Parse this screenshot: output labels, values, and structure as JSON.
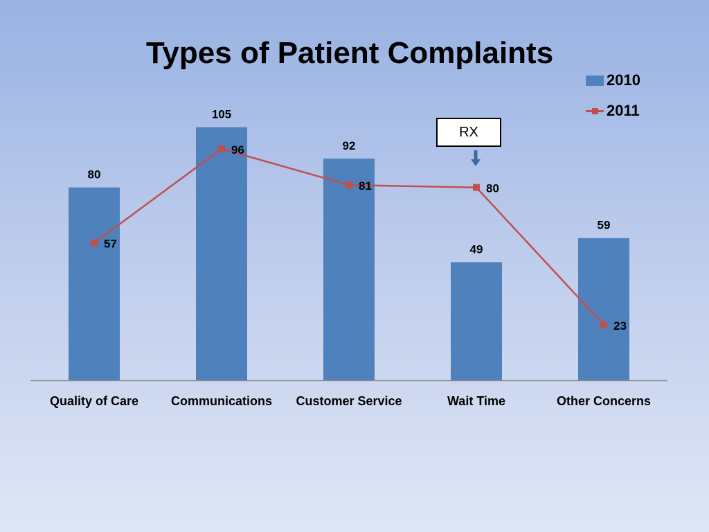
{
  "chart_data": {
    "type": "bar",
    "title": "Types of  Patient Complaints",
    "categories": [
      "Quality of Care",
      "Communications",
      "Customer Service",
      "Wait Time",
      "Other Concerns"
    ],
    "series": [
      {
        "name": "2010",
        "type": "bar",
        "color": "#4f81bd",
        "values": [
          80,
          105,
          92,
          49,
          59
        ]
      },
      {
        "name": "2011",
        "type": "line",
        "color": "#c0504d",
        "values": [
          57,
          96,
          81,
          80,
          23
        ]
      }
    ],
    "ylim": [
      0,
      115
    ],
    "grid": false,
    "legend": "top-right",
    "annotations": [
      {
        "text": "RX",
        "category": "Wait Time",
        "arrow": "down"
      }
    ]
  }
}
